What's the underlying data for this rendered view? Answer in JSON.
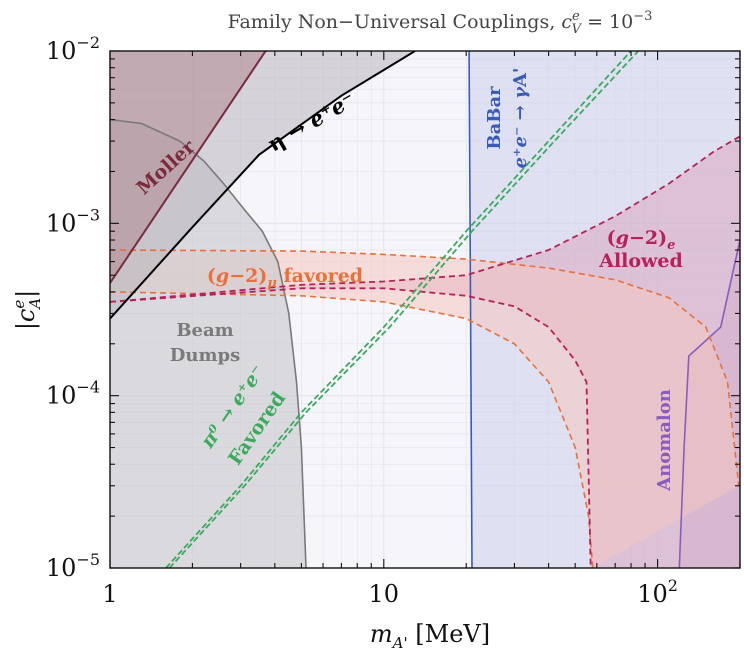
{
  "chart_data": {
    "type": "line",
    "title": "Family Non−Universal Couplings, ",
    "title_math": "c",
    "title_sup": "e",
    "title_sub": "V",
    "title_tail": " = 10",
    "title_exp": "−3",
    "xlabel_main": "m",
    "xlabel_sub": "A'",
    "xlabel_unit": " [MeV]",
    "ylabel_main": "|c",
    "ylabel_sup": "e",
    "ylabel_sub": "A",
    "ylabel_end": "|",
    "x_scale": "log",
    "y_scale": "log",
    "xlim": [
      1,
      200
    ],
    "ylim": [
      1e-05,
      0.01
    ],
    "x_ticks": [
      {
        "value": 1,
        "label": "1"
      },
      {
        "value": 10,
        "label": "10"
      },
      {
        "value": 100,
        "label": "10",
        "exp": "2"
      }
    ],
    "y_ticks": [
      {
        "value": 1e-05,
        "label": "10",
        "exp": "−5"
      },
      {
        "value": 0.0001,
        "label": "10",
        "exp": "−4"
      },
      {
        "value": 0.001,
        "label": "10",
        "exp": "−3"
      },
      {
        "value": 0.01,
        "label": "10",
        "exp": "−2"
      }
    ],
    "grid": true,
    "regions": [
      {
        "name": "Moller",
        "color": "#7a2a3a",
        "fill": "#b08890",
        "boundary": [
          [
            1,
            0.00045
          ],
          [
            3.7,
            0.01
          ]
        ]
      },
      {
        "name": "η → e⁺e⁻",
        "color": "#000000",
        "fill": "#b9b6be",
        "boundary": [
          [
            1,
            0.00028
          ],
          [
            2,
            0.00095
          ],
          [
            3.5,
            0.0025
          ],
          [
            7,
            0.0055
          ],
          [
            13,
            0.01
          ]
        ]
      },
      {
        "name": "Beam Dumps",
        "color": "#7a7a7a",
        "fill": "#c8c6cc",
        "boundary": [
          [
            1,
            0.004
          ],
          [
            1.3,
            0.0038
          ],
          [
            1.8,
            0.003
          ],
          [
            2.2,
            0.0023
          ],
          [
            2.6,
            0.0017
          ],
          [
            3.1,
            0.0012
          ],
          [
            3.6,
            0.0009
          ],
          [
            4.1,
            0.0006
          ],
          [
            4.5,
            0.0003
          ],
          [
            4.8,
            0.00012
          ],
          [
            5.0,
            5e-05
          ],
          [
            5.2,
            1e-05
          ]
        ]
      },
      {
        "name": "BaBar",
        "label2": "e⁺e⁻ → γA'",
        "color": "#3a5cb8",
        "fill": "#c8cde9",
        "boundary": [
          [
            20.5,
            0.01
          ],
          [
            21,
            1e-05
          ]
        ]
      },
      {
        "name": "Anomalon",
        "color": "#8a5cc0",
        "fill": "#d4b9da",
        "boundary": [
          [
            120,
            1e-05
          ],
          [
            125,
            5e-05
          ],
          [
            130,
            0.00017
          ],
          [
            170,
            0.00025
          ],
          [
            200,
            0.0008
          ]
        ]
      }
    ],
    "bands": [
      {
        "name": "(g−2)μ favored",
        "color": "#e8703a",
        "fill": "#f4c7c0",
        "upper": [
          [
            1,
            0.0007
          ],
          [
            5,
            0.00069
          ],
          [
            10,
            0.00066
          ],
          [
            20,
            0.00062
          ],
          [
            40,
            0.00055
          ],
          [
            70,
            0.00047
          ],
          [
            110,
            0.00037
          ],
          [
            150,
            0.00025
          ],
          [
            180,
            0.00012
          ],
          [
            198,
            3e-05
          ]
        ],
        "lower": [
          [
            1,
            0.0004
          ],
          [
            5,
            0.00038
          ],
          [
            10,
            0.00035
          ],
          [
            20,
            0.00028
          ],
          [
            30,
            0.0002
          ],
          [
            40,
            0.00012
          ],
          [
            50,
            5e-05
          ],
          [
            56,
            2e-05
          ],
          [
            58,
            1e-05
          ]
        ]
      },
      {
        "name": "(g−2)e",
        "label2": "Allowed",
        "color": "#b8205a",
        "fill": "#d9a8c1",
        "upper": [
          [
            1,
            0.00035
          ],
          [
            5,
            0.00044
          ],
          [
            10,
            0.00046
          ],
          [
            20,
            0.0005
          ],
          [
            40,
            0.0007
          ],
          [
            70,
            0.0011
          ],
          [
            110,
            0.0017
          ],
          [
            160,
            0.0026
          ],
          [
            200,
            0.0032
          ]
        ],
        "lower": [
          [
            1,
            0.00035
          ],
          [
            5,
            0.00042
          ],
          [
            10,
            0.00042
          ],
          [
            20,
            0.00038
          ],
          [
            30,
            0.00033
          ],
          [
            40,
            0.00025
          ],
          [
            50,
            0.00016
          ],
          [
            55,
            0.00012
          ],
          [
            57,
            1e-05
          ]
        ]
      },
      {
        "name": "π⁰ → e⁺e⁻",
        "label2": "Favored",
        "color": "#3aaa5c",
        "upper": [
          [
            1.6,
            1e-05
          ],
          [
            3,
            3e-05
          ],
          [
            5,
            8e-05
          ],
          [
            10,
            0.00025
          ],
          [
            20,
            0.0009
          ],
          [
            40,
            0.003
          ],
          [
            80,
            0.01
          ]
        ],
        "lower": [
          [
            1.65,
            1e-05
          ],
          [
            3.1,
            3e-05
          ],
          [
            5.2,
            8e-05
          ],
          [
            10.5,
            0.00025
          ],
          [
            21,
            0.0009
          ],
          [
            42,
            0.003
          ],
          [
            85,
            0.01
          ]
        ]
      }
    ]
  }
}
